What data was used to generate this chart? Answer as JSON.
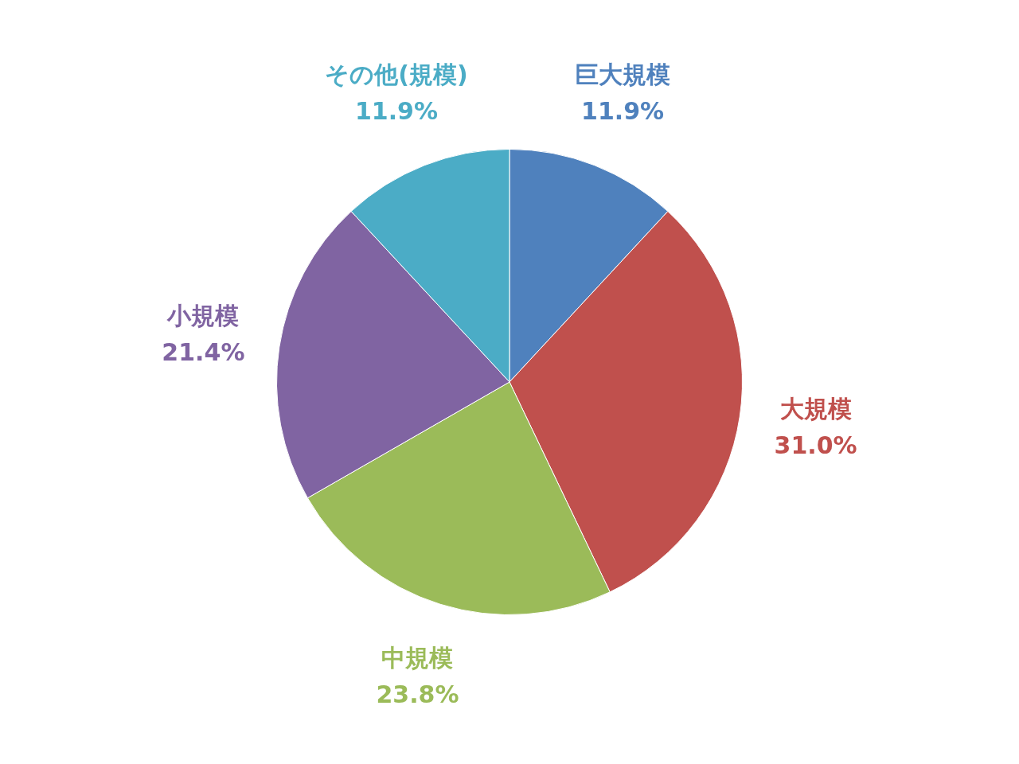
{
  "chart_data": {
    "type": "pie",
    "categories": [
      "巨大規模",
      "大規模",
      "中規模",
      "小規模",
      "その他(規模)"
    ],
    "values": [
      11.9,
      31.0,
      23.8,
      21.4,
      11.9
    ],
    "value_labels": [
      "11.9%",
      "31.0%",
      "23.8%",
      "21.4%",
      "11.9%"
    ],
    "colors": [
      "#4f81bd",
      "#c0504d",
      "#9bbb59",
      "#8064a2",
      "#4bacc6"
    ],
    "legend": false
  }
}
